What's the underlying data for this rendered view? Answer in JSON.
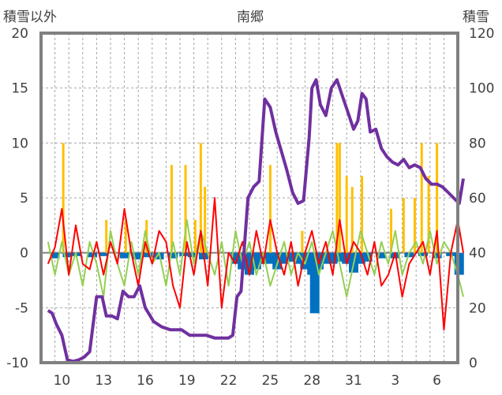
{
  "chart_data": {
    "type": "line",
    "title": "南郷",
    "ylabel_left": "積雪以外",
    "ylabel_right": "積雪",
    "ylim_left": [
      -10,
      20
    ],
    "ylim_right": [
      0,
      120
    ],
    "yticks_left": [
      "20",
      "15",
      "10",
      "5",
      "0",
      "-5",
      "-10"
    ],
    "yticks_right": [
      "120",
      "100",
      "80",
      "60",
      "40",
      "20",
      "0"
    ],
    "x_day_count": 30,
    "x_tick_labels": [
      {
        "day": 1,
        "label": "10"
      },
      {
        "day": 4,
        "label": "13"
      },
      {
        "day": 7,
        "label": "16"
      },
      {
        "day": 10,
        "label": "19"
      },
      {
        "day": 13,
        "label": "22"
      },
      {
        "day": 16,
        "label": "25"
      },
      {
        "day": 19,
        "label": "28"
      },
      {
        "day": 22,
        "label": "31"
      },
      {
        "day": 25,
        "label": "3"
      },
      {
        "day": 28,
        "label": "6"
      }
    ],
    "grid": true,
    "snow_depth": {
      "axis": "right",
      "color": "#7030a0",
      "points": [
        [
          0.0,
          19
        ],
        [
          0.3,
          18
        ],
        [
          0.6,
          14
        ],
        [
          1.0,
          10
        ],
        [
          1.4,
          1
        ],
        [
          1.8,
          0.5
        ],
        [
          2.2,
          1
        ],
        [
          2.6,
          2
        ],
        [
          3.0,
          4
        ],
        [
          3.5,
          24
        ],
        [
          3.9,
          24
        ],
        [
          4.2,
          17
        ],
        [
          4.6,
          17
        ],
        [
          5.0,
          16
        ],
        [
          5.4,
          26
        ],
        [
          5.8,
          24
        ],
        [
          6.2,
          24
        ],
        [
          6.6,
          28
        ],
        [
          7.0,
          20
        ],
        [
          7.6,
          15
        ],
        [
          8.2,
          13
        ],
        [
          8.8,
          12
        ],
        [
          9.6,
          12
        ],
        [
          10.2,
          10
        ],
        [
          10.8,
          10
        ],
        [
          11.4,
          10
        ],
        [
          12.0,
          9
        ],
        [
          12.6,
          9
        ],
        [
          13.0,
          9
        ],
        [
          13.3,
          10
        ],
        [
          13.6,
          24
        ],
        [
          13.9,
          26
        ],
        [
          14.4,
          60
        ],
        [
          14.8,
          64
        ],
        [
          15.2,
          66
        ],
        [
          15.6,
          96
        ],
        [
          16.0,
          93
        ],
        [
          16.4,
          84
        ],
        [
          16.8,
          77
        ],
        [
          17.2,
          70
        ],
        [
          17.6,
          62
        ],
        [
          18.0,
          58
        ],
        [
          18.4,
          59
        ],
        [
          18.8,
          82
        ],
        [
          19.0,
          100
        ],
        [
          19.3,
          103
        ],
        [
          19.6,
          94
        ],
        [
          20.0,
          90
        ],
        [
          20.4,
          100
        ],
        [
          20.8,
          103
        ],
        [
          21.2,
          97
        ],
        [
          21.6,
          91
        ],
        [
          22.0,
          85
        ],
        [
          22.3,
          88
        ],
        [
          22.6,
          98
        ],
        [
          22.9,
          96
        ],
        [
          23.2,
          84
        ],
        [
          23.6,
          85
        ],
        [
          24.0,
          78
        ],
        [
          24.4,
          75
        ],
        [
          24.8,
          73
        ],
        [
          25.2,
          72
        ],
        [
          25.6,
          74
        ],
        [
          26.0,
          71
        ],
        [
          26.4,
          72
        ],
        [
          26.8,
          71
        ],
        [
          27.2,
          67
        ],
        [
          27.6,
          65
        ],
        [
          28.0,
          65
        ],
        [
          28.4,
          64
        ],
        [
          28.8,
          62
        ],
        [
          29.2,
          60
        ],
        [
          29.6,
          58
        ],
        [
          29.9,
          67
        ]
      ]
    },
    "red_series": {
      "axis": "left",
      "color": "#ff0000",
      "points": [
        [
          0.0,
          -1
        ],
        [
          0.5,
          0.5
        ],
        [
          1.0,
          4
        ],
        [
          1.5,
          -2
        ],
        [
          2.0,
          2.5
        ],
        [
          2.5,
          -1
        ],
        [
          3.0,
          -1.5
        ],
        [
          3.5,
          1
        ],
        [
          4.0,
          -2
        ],
        [
          4.5,
          1
        ],
        [
          5.0,
          -1
        ],
        [
          5.5,
          4
        ],
        [
          6.0,
          0
        ],
        [
          6.5,
          -3
        ],
        [
          7.0,
          1
        ],
        [
          7.5,
          -1
        ],
        [
          8.0,
          2
        ],
        [
          8.5,
          1
        ],
        [
          9.0,
          -3
        ],
        [
          9.5,
          -5
        ],
        [
          10.0,
          1
        ],
        [
          10.5,
          -2
        ],
        [
          11.0,
          2
        ],
        [
          11.5,
          -3
        ],
        [
          12.0,
          5
        ],
        [
          12.5,
          -5
        ],
        [
          13.0,
          0
        ],
        [
          13.5,
          -1
        ],
        [
          14.0,
          1
        ],
        [
          14.5,
          -2
        ],
        [
          15.0,
          2
        ],
        [
          15.5,
          -1
        ],
        [
          16.0,
          3
        ],
        [
          16.5,
          0
        ],
        [
          17.0,
          -2
        ],
        [
          17.5,
          1
        ],
        [
          18.0,
          -3
        ],
        [
          18.5,
          0
        ],
        [
          19.0,
          2
        ],
        [
          19.5,
          -1
        ],
        [
          20.0,
          1
        ],
        [
          20.5,
          -2
        ],
        [
          21.0,
          3
        ],
        [
          21.5,
          -1
        ],
        [
          22.0,
          1
        ],
        [
          22.5,
          0
        ],
        [
          23.0,
          -2
        ],
        [
          23.5,
          1
        ],
        [
          24.0,
          -3
        ],
        [
          24.5,
          -2
        ],
        [
          25.0,
          0
        ],
        [
          25.5,
          -4
        ],
        [
          26.0,
          -1
        ],
        [
          26.5,
          0
        ],
        [
          27.0,
          1
        ],
        [
          27.5,
          -2
        ],
        [
          28.0,
          2
        ],
        [
          28.5,
          -7
        ],
        [
          29.0,
          0
        ],
        [
          29.5,
          3
        ],
        [
          29.9,
          0
        ]
      ]
    },
    "green_series": {
      "axis": "left",
      "color": "#92d050",
      "points": [
        [
          0.0,
          1
        ],
        [
          0.5,
          -2
        ],
        [
          1.0,
          1
        ],
        [
          1.5,
          -2
        ],
        [
          2.0,
          0
        ],
        [
          2.5,
          -3
        ],
        [
          3.0,
          1
        ],
        [
          3.5,
          -1
        ],
        [
          4.0,
          -4
        ],
        [
          4.5,
          2
        ],
        [
          5.0,
          -1
        ],
        [
          5.5,
          -3
        ],
        [
          6.0,
          1
        ],
        [
          6.5,
          -2
        ],
        [
          7.0,
          2
        ],
        [
          7.5,
          -1
        ],
        [
          8.0,
          0
        ],
        [
          8.5,
          -3
        ],
        [
          9.0,
          1
        ],
        [
          9.5,
          -2
        ],
        [
          10.0,
          3
        ],
        [
          10.5,
          -1
        ],
        [
          11.0,
          2
        ],
        [
          11.5,
          0
        ],
        [
          12.0,
          -2
        ],
        [
          12.5,
          1
        ],
        [
          13.0,
          -3
        ],
        [
          13.5,
          2
        ],
        [
          14.0,
          -1
        ],
        [
          14.5,
          1
        ],
        [
          15.0,
          -2
        ],
        [
          15.5,
          0
        ],
        [
          16.0,
          -3
        ],
        [
          16.5,
          -1
        ],
        [
          17.0,
          1
        ],
        [
          17.5,
          -2
        ],
        [
          18.0,
          0
        ],
        [
          18.5,
          -1
        ],
        [
          19.0,
          1
        ],
        [
          19.5,
          -2
        ],
        [
          20.0,
          0
        ],
        [
          20.5,
          2
        ],
        [
          21.0,
          -1
        ],
        [
          21.5,
          -4
        ],
        [
          22.0,
          -1
        ],
        [
          22.5,
          2
        ],
        [
          23.0,
          0
        ],
        [
          23.5,
          -2
        ],
        [
          24.0,
          1
        ],
        [
          24.5,
          -1
        ],
        [
          25.0,
          2
        ],
        [
          25.5,
          -2
        ],
        [
          26.0,
          0
        ],
        [
          26.5,
          1
        ],
        [
          27.0,
          -1
        ],
        [
          27.5,
          2
        ],
        [
          28.0,
          -1
        ],
        [
          28.5,
          1
        ],
        [
          29.0,
          0
        ],
        [
          29.5,
          -2
        ],
        [
          29.9,
          -4
        ]
      ]
    },
    "precip_bars": {
      "axis": "left",
      "color": "#ffc000",
      "items": [
        [
          1.1,
          10
        ],
        [
          4.2,
          3
        ],
        [
          5.6,
          3
        ],
        [
          7.1,
          3
        ],
        [
          8.9,
          8
        ],
        [
          9.9,
          8
        ],
        [
          10.6,
          3
        ],
        [
          11.0,
          10
        ],
        [
          11.3,
          6
        ],
        [
          16.0,
          8
        ],
        [
          18.3,
          2
        ],
        [
          20.8,
          10
        ],
        [
          21.0,
          10
        ],
        [
          21.5,
          7
        ],
        [
          21.9,
          6
        ],
        [
          22.6,
          7
        ],
        [
          24.7,
          4
        ],
        [
          25.6,
          5
        ],
        [
          26.4,
          5
        ],
        [
          26.9,
          10
        ],
        [
          27.4,
          7
        ],
        [
          28.0,
          10
        ]
      ]
    },
    "blue_bars": {
      "axis": "left",
      "color": "#0070c0",
      "items": [
        [
          0.5,
          -0.5
        ],
        [
          1.4,
          -0.4
        ],
        [
          2.0,
          -0.3
        ],
        [
          3.2,
          -0.4
        ],
        [
          4.0,
          -0.3
        ],
        [
          5.5,
          -0.5
        ],
        [
          6.4,
          -0.6
        ],
        [
          7.2,
          -0.4
        ],
        [
          8.0,
          -0.6
        ],
        [
          9.0,
          -0.5
        ],
        [
          9.8,
          -0.3
        ],
        [
          10.4,
          -0.4
        ],
        [
          11.2,
          -0.6
        ],
        [
          13.5,
          -1
        ],
        [
          14.0,
          -1.5
        ],
        [
          14.5,
          -2
        ],
        [
          15.0,
          -1.5
        ],
        [
          15.5,
          -1
        ],
        [
          16.0,
          -1
        ],
        [
          16.5,
          -1.5
        ],
        [
          17.0,
          -1
        ],
        [
          17.5,
          -0.8
        ],
        [
          18.0,
          -1
        ],
        [
          18.5,
          -1.5
        ],
        [
          19.0,
          -2
        ],
        [
          19.2,
          -5.5
        ],
        [
          19.5,
          -1.5
        ],
        [
          20.0,
          -1
        ],
        [
          20.5,
          -1
        ],
        [
          21.0,
          -0.8
        ],
        [
          21.5,
          -1
        ],
        [
          22.0,
          -1.8
        ],
        [
          22.5,
          -1
        ],
        [
          23.0,
          -0.8
        ],
        [
          24.0,
          -0.5
        ],
        [
          25.0,
          -0.5
        ],
        [
          26.0,
          -0.4
        ],
        [
          27.0,
          -0.3
        ],
        [
          28.0,
          -0.5
        ],
        [
          29.0,
          -0.3
        ],
        [
          29.6,
          -2
        ]
      ]
    },
    "colors": {
      "frame": "#808080",
      "grid": "#a6a6a6",
      "tick_text": "#404040"
    }
  }
}
